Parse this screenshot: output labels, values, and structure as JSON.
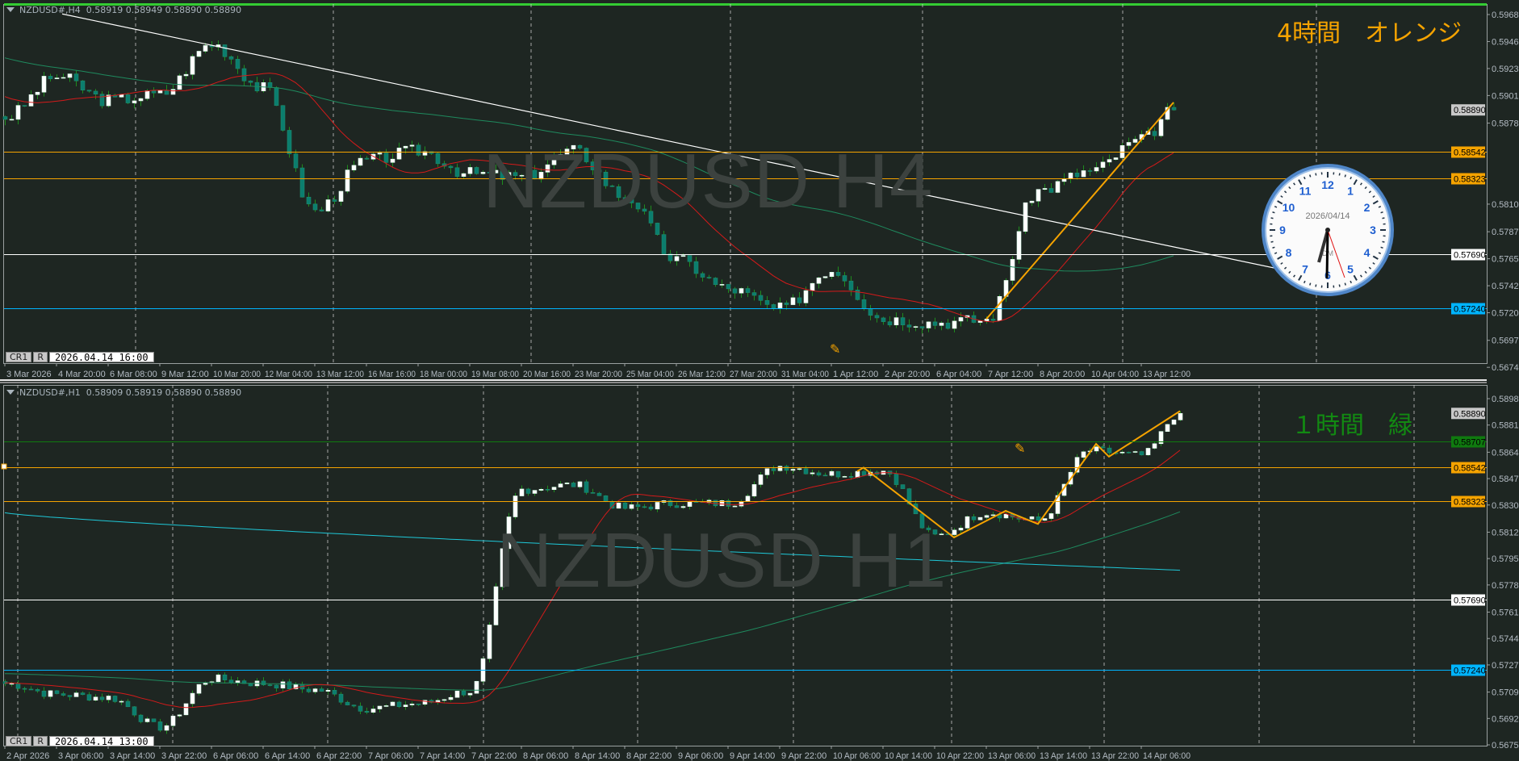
{
  "chart_data": [
    {
      "type": "candlestick",
      "header": "NZDUSD#,H4  0.58919 0.58949 0.58890 0.58890",
      "watermark": "NZDUSD H4",
      "note_label": "4時間　オレンジ",
      "note_color": "#f5a300",
      "ylim": [
        0.56745,
        0.59685
      ],
      "y_tick_labels": [
        "0.59685",
        "0.59460",
        "0.59235",
        "0.59010",
        "0.58780",
        "0.58105",
        "0.57875",
        "0.57650",
        "0.57425",
        "0.57200",
        "0.56970",
        "0.56745"
      ],
      "close_anchors": [
        {
          "time": "3 Mar 2026",
          "close": 0.5883
        },
        {
          "time": "4 Mar 20:00",
          "close": 0.5917
        },
        {
          "time": "6 Mar 08:00",
          "close": 0.5897
        },
        {
          "time": "9 Mar 12:00",
          "close": 0.5902
        },
        {
          "time": "10 Mar 20:00",
          "close": 0.5944
        },
        {
          "time": "12 Mar 04:00",
          "close": 0.5907
        },
        {
          "time": "13 Mar 12:00",
          "close": 0.5805
        },
        {
          "time": "16 Mar 16:00",
          "close": 0.5847
        },
        {
          "time": "18 Mar 00:00",
          "close": 0.5855
        },
        {
          "time": "19 Mar 08:00",
          "close": 0.5836
        },
        {
          "time": "20 Mar 16:00",
          "close": 0.5833
        },
        {
          "time": "23 Mar 20:00",
          "close": 0.5855
        },
        {
          "time": "25 Mar 04:00",
          "close": 0.5817
        },
        {
          "time": "26 Mar 12:00",
          "close": 0.5764
        },
        {
          "time": "27 Mar 20:00",
          "close": 0.574
        },
        {
          "time": "31 Mar 04:00",
          "close": 0.5723
        },
        {
          "time": "1 Apr 12:00",
          "close": 0.5756
        },
        {
          "time": "2 Apr 20:00",
          "close": 0.5715
        },
        {
          "time": "6 Apr 04:00",
          "close": 0.5712
        },
        {
          "time": "7 Apr 12:00",
          "close": 0.5714
        },
        {
          "time": "8 Apr 20:00",
          "close": 0.5822
        },
        {
          "time": "10 Apr 04:00",
          "close": 0.5838
        },
        {
          "time": "13 Apr 12:00",
          "close": 0.5864
        }
      ],
      "last_close": 0.5889,
      "current_price": "0.58890",
      "levels": [
        {
          "price": "0.58542",
          "color": "#f5a300"
        },
        {
          "price": "0.58323",
          "color": "#f5a300"
        },
        {
          "price": "0.57690",
          "color": "#ffffff"
        },
        {
          "price": "0.57240",
          "color": "#00b4ff"
        }
      ],
      "trendline": {
        "start_price": 0.5969,
        "end_price": 0.5745,
        "color": "#ffffff"
      },
      "colors": {
        "bull": "#ffffff",
        "bear": "#0b7d6e",
        "wick": "#1e8c1e",
        "ma_fast": "#d41a1a",
        "ma_slow": "#1f8a5e",
        "zigzag": "#f5a300",
        "active_border": "#33cc33"
      },
      "crosshair": {
        "btn1": "CR1",
        "btn2": "R",
        "time": "2026.04.14 16:00"
      }
    },
    {
      "type": "candlestick",
      "header": "NZDUSD#,H1  0.58909 0.58919 0.58890 0.58890",
      "watermark": "NZDUSD H1",
      "note_label": "１時間　緑",
      "note_color": "#128a12",
      "ylim": [
        0.56755,
        0.58985
      ],
      "y_tick_labels": [
        "0.58985",
        "0.58815",
        "0.58640",
        "0.58470",
        "0.58300",
        "0.58125",
        "0.57955",
        "0.57785",
        "0.57610",
        "0.57440",
        "0.57270",
        "0.57095",
        "0.56925",
        "0.56755"
      ],
      "close_anchors": [
        {
          "time": "2 Apr 2026",
          "close": 0.5715
        },
        {
          "time": "3 Apr 06:00",
          "close": 0.5708
        },
        {
          "time": "3 Apr 14:00",
          "close": 0.5706
        },
        {
          "time": "3 Apr 22:00",
          "close": 0.5687
        },
        {
          "time": "6 Apr 06:00",
          "close": 0.5718
        },
        {
          "time": "6 Apr 14:00",
          "close": 0.5715
        },
        {
          "time": "6 Apr 22:00",
          "close": 0.5711
        },
        {
          "time": "7 Apr 06:00",
          "close": 0.5699
        },
        {
          "time": "7 Apr 14:00",
          "close": 0.5702
        },
        {
          "time": "7 Apr 22:00",
          "close": 0.571
        },
        {
          "time": "8 Apr 06:00",
          "close": 0.584
        },
        {
          "time": "8 Apr 14:00",
          "close": 0.5843
        },
        {
          "time": "8 Apr 22:00",
          "close": 0.5828
        },
        {
          "time": "9 Apr 06:00",
          "close": 0.5831
        },
        {
          "time": "9 Apr 14:00",
          "close": 0.5831
        },
        {
          "time": "9 Apr 22:00",
          "close": 0.5855
        },
        {
          "time": "10 Apr 06:00",
          "close": 0.585
        },
        {
          "time": "10 Apr 14:00",
          "close": 0.5852
        },
        {
          "time": "10 Apr 22:00",
          "close": 0.581
        },
        {
          "time": "13 Apr 06:00",
          "close": 0.5825
        },
        {
          "time": "13 Apr 14:00",
          "close": 0.582
        },
        {
          "time": "13 Apr 22:00",
          "close": 0.5865
        },
        {
          "time": "14 Apr 06:00",
          "close": 0.5862
        }
      ],
      "last_close": 0.5889,
      "current_price": "0.58890",
      "levels": [
        {
          "price": "0.58707",
          "color": "#0f7a0f"
        },
        {
          "price": "0.58542",
          "color": "#f5a300"
        },
        {
          "price": "0.58323",
          "color": "#f5a300"
        },
        {
          "price": "0.57690",
          "color": "#ffffff"
        },
        {
          "price": "0.57240",
          "color": "#00b4ff"
        }
      ],
      "long_ma": {
        "start": 0.5825,
        "end": 0.5788,
        "color": "#1ec8d8"
      },
      "colors": {
        "bull": "#ffffff",
        "bear": "#0b7d6e",
        "wick": "#1e8c1e",
        "ma_fast": "#d41a1a",
        "ma_slow": "#1f8a5e",
        "zigzag": "#f5a300"
      },
      "crosshair": {
        "btn1": "CR1",
        "btn2": "R",
        "time": "2026.04.14 13:00"
      }
    }
  ],
  "clock": {
    "date": "2026/04/14",
    "logo": "DM",
    "numbers": [
      "12",
      "1",
      "2",
      "3",
      "4",
      "5",
      "6",
      "7",
      "8",
      "9",
      "10",
      "11"
    ]
  }
}
